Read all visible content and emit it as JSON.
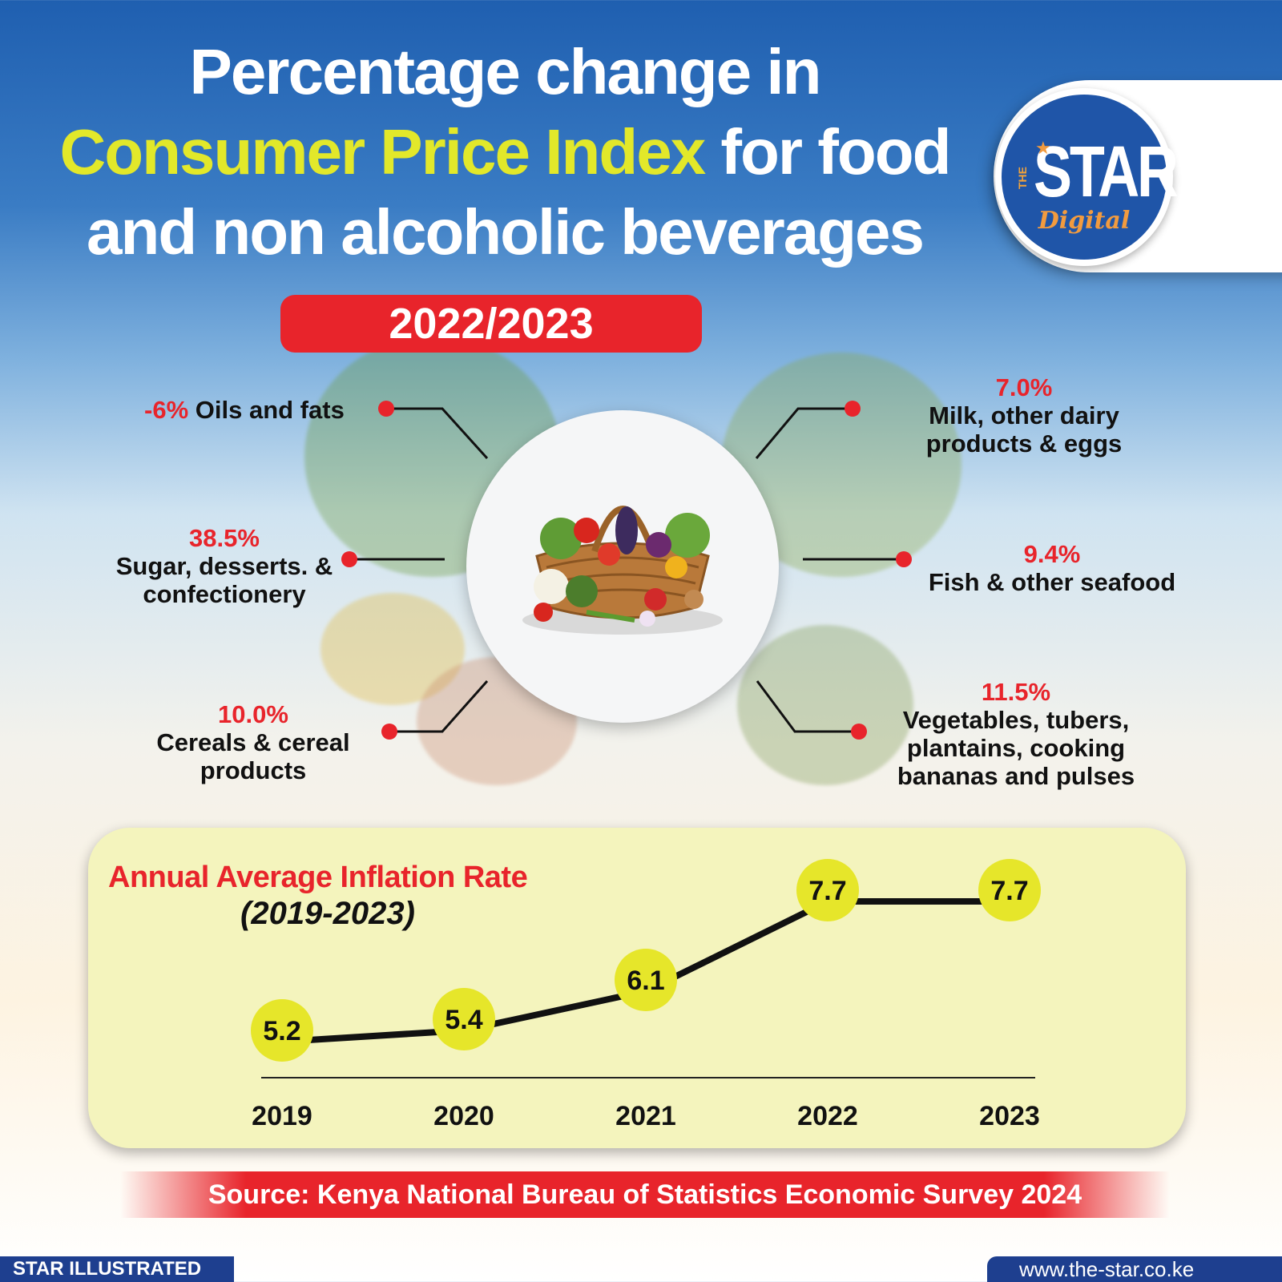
{
  "title": {
    "line1": "Percentage change in",
    "line2_highlight": "Consumer Price Index",
    "line2_rest": " for food",
    "line3": "and non alcoholic beverages"
  },
  "logo": {
    "the": "THE",
    "star": "STAR",
    "digital": "Digital"
  },
  "period": "2022/2023",
  "categories": [
    {
      "value": "-6%",
      "label": "Oils and fats"
    },
    {
      "value": "38.5%",
      "label_line1": "Sugar, desserts. &",
      "label_line2": "confectionery"
    },
    {
      "value": "10.0%",
      "label_line1": "Cereals & cereal",
      "label_line2": "products"
    },
    {
      "value": "7.0%",
      "label_line1": "Milk, other dairy",
      "label_line2": "products & eggs"
    },
    {
      "value": "9.4%",
      "label": "Fish & other seafood"
    },
    {
      "value": "11.5%",
      "label_line1": "Vegetables, tubers,",
      "label_line2": "plantains, cooking",
      "label_line3": "bananas and pulses"
    }
  ],
  "colors": {
    "accent_red": "#e8242b",
    "highlight_yellow": "#e2e82a",
    "brand_blue": "#1f55a8",
    "marker_yellow": "#e6e62a"
  },
  "chart_data": {
    "type": "line",
    "title": "Annual Average Inflation Rate",
    "subtitle": "(2019-2023)",
    "xlabel": "",
    "ylabel": "",
    "categories": [
      "2019",
      "2020",
      "2021",
      "2022",
      "2023"
    ],
    "values": [
      5.2,
      5.4,
      6.1,
      7.7,
      7.7
    ],
    "data_labels": [
      "5.2",
      "5.4",
      "6.1",
      "7.7",
      "7.7"
    ],
    "grid": false,
    "legend": "none"
  },
  "source": "Source: Kenya National Bureau of Statistics Economic Survey 2024",
  "footer": {
    "left": "STAR ILLUSTRATED",
    "right": "www.the-star.co.ke"
  }
}
